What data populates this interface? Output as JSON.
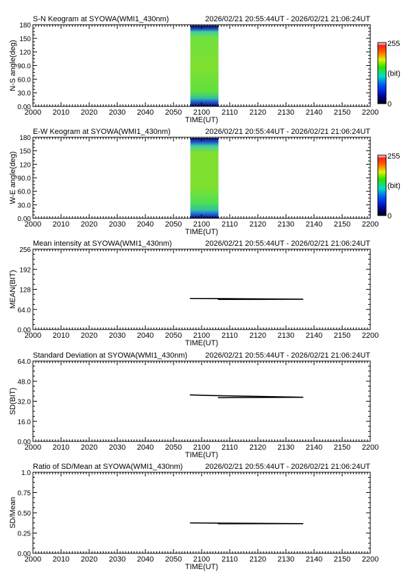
{
  "time_range": "2026/02/21 20:55:44UT - 2026/02/21 21:06:24UT",
  "xlabel": "TIME(UT)",
  "x_ticks": [
    "2000",
    "2010",
    "2020",
    "2030",
    "2040",
    "2050",
    "2100",
    "2110",
    "2120",
    "2130",
    "2140",
    "2150",
    "2200"
  ],
  "colorbar": {
    "max_label": "255",
    "min_label": "0",
    "unit": "(bit)"
  },
  "chart_data": [
    {
      "type": "heatmap",
      "title": "S-N Keogram at SYOWA(WMI1_430nm)",
      "ylabel": "N-S angle(deg)",
      "y_ticks": [
        "0.00",
        "30.0",
        "60.0",
        "90.0",
        "120",
        "150",
        "180"
      ],
      "ylim": [
        0,
        180
      ],
      "data_x_range": [
        "2056",
        "2106"
      ],
      "colorbar": true
    },
    {
      "type": "heatmap",
      "title": "E-W Keogram at SYOWA(WMI1_430nm)",
      "ylabel": "W-E angle(deg)",
      "y_ticks": [
        "0.00",
        "30.0",
        "60.0",
        "90.0",
        "120",
        "150",
        "180"
      ],
      "ylim": [
        0,
        180
      ],
      "data_x_range": [
        "2056",
        "2106"
      ],
      "colorbar": true
    },
    {
      "type": "line",
      "title": "Mean intensity at SYOWA(WMI1_430nm)",
      "ylabel": "MEAN(BIT)",
      "y_ticks": [
        "0.00",
        "64.0",
        "128",
        "192",
        "256"
      ],
      "ylim": [
        0,
        256
      ],
      "values": [
        [
          2056,
          99
        ],
        [
          2066,
          98.5
        ],
        [
          2076,
          97.8
        ],
        [
          2086,
          97.2
        ],
        [
          2096,
          96.6
        ],
        [
          2106,
          95.8
        ]
      ]
    },
    {
      "type": "line",
      "title": "Standard Deviation at SYOWA(WMI1_430nm)",
      "ylabel": "SD(BIT)",
      "y_ticks": [
        "0.00",
        "16.0",
        "32.0",
        "48.0",
        "64.0"
      ],
      "ylim": [
        0,
        64
      ],
      "values": [
        [
          2056,
          37
        ],
        [
          2066,
          36.4
        ],
        [
          2076,
          36
        ],
        [
          2086,
          35.6
        ],
        [
          2096,
          35.2
        ],
        [
          2106,
          34.8
        ]
      ]
    },
    {
      "type": "line",
      "title": "Ratio of SD/Mean at SYOWA(WMI1_430nm)",
      "ylabel": "SD/Mean",
      "y_ticks": [
        "0.00",
        "0.25",
        "0.50",
        "0.75",
        "1.0"
      ],
      "ylim": [
        0,
        1
      ],
      "values": [
        [
          2056,
          0.375
        ],
        [
          2066,
          0.372
        ],
        [
          2076,
          0.37
        ],
        [
          2086,
          0.368
        ],
        [
          2096,
          0.366
        ],
        [
          2106,
          0.365
        ]
      ]
    }
  ]
}
